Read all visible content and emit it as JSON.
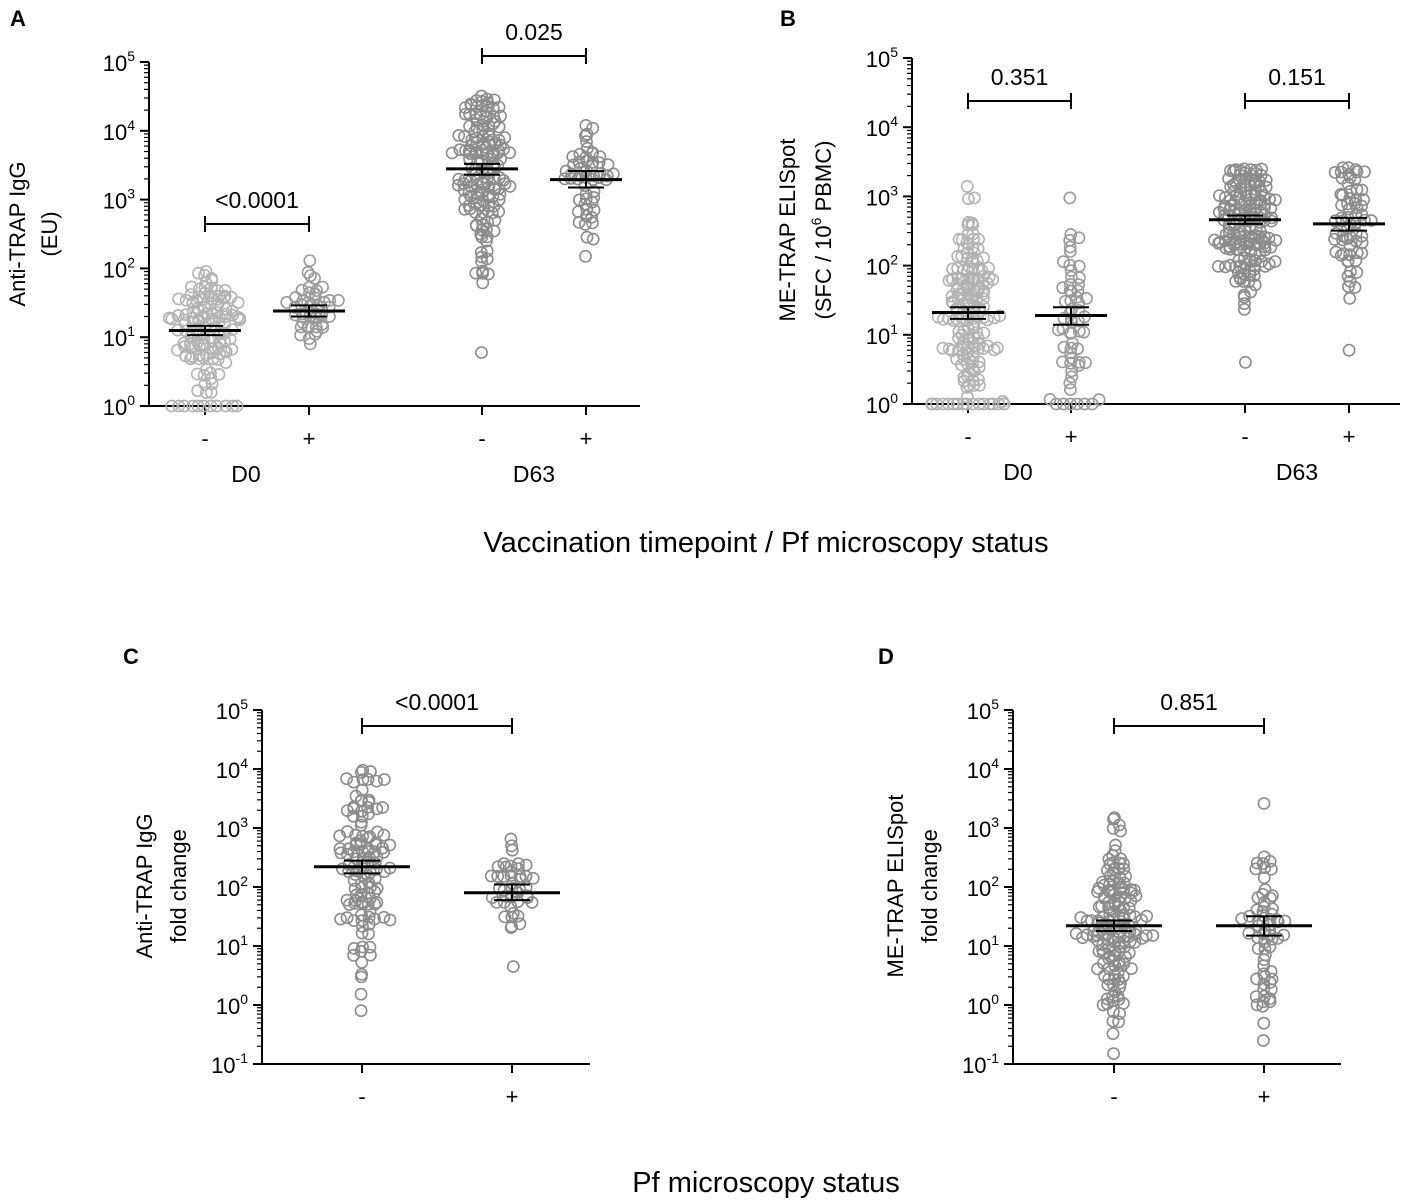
{
  "figure": {
    "shared_xlabel_top": "Vaccination timepoint / Pf microscopy status",
    "shared_xlabel_bottom": "Pf microscopy status"
  },
  "chart_data": [
    {
      "panel": "A",
      "type": "scatter",
      "yscale": "log10",
      "ylim_exponents": [
        0,
        5
      ],
      "ytick_base": "10",
      "ytick_exponents": [
        "0",
        "1",
        "2",
        "3",
        "4",
        "5"
      ],
      "ylabel_lines": [
        "Anti-TRAP IgG",
        "(EU)"
      ],
      "categories": [
        "-",
        "+",
        "-",
        "+"
      ],
      "groups": [
        "D0",
        "D63"
      ],
      "series": [
        {
          "name": "D0 -",
          "gray": "#b3b3b3",
          "geo_mean": 12.5,
          "ci": [
            10.7,
            14.6
          ],
          "n": 130,
          "min": 1,
          "max": 90,
          "floor_count": 10
        },
        {
          "name": "D0 +",
          "gray": "#9a9a9a",
          "geo_mean": 24,
          "ci": [
            20,
            29
          ],
          "n": 45,
          "min": 8,
          "max": 130,
          "floor_count": 0
        },
        {
          "name": "D63 -",
          "gray": "#8c8c8c",
          "geo_mean": 2800,
          "ci": [
            2300,
            3300
          ],
          "n": 150,
          "min": 6,
          "max": 32000,
          "floor_count": 0
        },
        {
          "name": "D63 +",
          "gray": "#8c8c8c",
          "geo_mean": 1950,
          "ci": [
            1500,
            2600
          ],
          "n": 55,
          "min": 150,
          "max": 12000,
          "floor_count": 0
        }
      ],
      "comparisons": [
        {
          "between": [
            "D0 -",
            "D0 +"
          ],
          "p": "<0.0001"
        },
        {
          "between": [
            "D63 -",
            "D63 +"
          ],
          "p": "0.025"
        }
      ]
    },
    {
      "panel": "B",
      "type": "scatter",
      "yscale": "log10",
      "ylim_exponents": [
        0,
        5
      ],
      "ytick_base": "10",
      "ytick_exponents": [
        "0",
        "1",
        "2",
        "3",
        "4",
        "5"
      ],
      "ylabel_lines": [
        "ME-TRAP ELISpot",
        "(SFC / 10",
        "6",
        " PBMC)"
      ],
      "categories": [
        "-",
        "+",
        "-",
        "+"
      ],
      "groups": [
        "D0",
        "D63"
      ],
      "series": [
        {
          "name": "D0 -",
          "gray": "#b3b3b3",
          "geo_mean": 21,
          "ci": [
            17,
            25
          ],
          "n": 170,
          "min": 1,
          "max": 1400,
          "floor_count": 16
        },
        {
          "name": "D0 +",
          "gray": "#9a9a9a",
          "geo_mean": 19,
          "ci": [
            14,
            25
          ],
          "n": 60,
          "min": 1,
          "max": 950,
          "floor_count": 5
        },
        {
          "name": "D63 -",
          "gray": "#8c8c8c",
          "geo_mean": 460,
          "ci": [
            400,
            530
          ],
          "n": 170,
          "min": 4,
          "max": 2500,
          "floor_count": 0
        },
        {
          "name": "D63 +",
          "gray": "#8c8c8c",
          "geo_mean": 400,
          "ci": [
            320,
            490
          ],
          "n": 65,
          "min": 6,
          "max": 2600,
          "floor_count": 0
        }
      ],
      "comparisons": [
        {
          "between": [
            "D0 -",
            "D0 +"
          ],
          "p": "0.351"
        },
        {
          "between": [
            "D63 -",
            "D63 +"
          ],
          "p": "0.151"
        }
      ]
    },
    {
      "panel": "C",
      "type": "scatter",
      "yscale": "log10",
      "ylim_exponents": [
        -1,
        5
      ],
      "ytick_base": "10",
      "ytick_exponents": [
        "-1",
        "0",
        "1",
        "2",
        "3",
        "4",
        "5"
      ],
      "ylabel_lines": [
        "Anti-TRAP IgG",
        "fold change"
      ],
      "categories": [
        "-",
        "+"
      ],
      "groups": [],
      "series": [
        {
          "name": "-",
          "gray": "#8c8c8c",
          "geo_mean": 220,
          "ci": [
            170,
            280
          ],
          "n": 120,
          "min": 0.8,
          "max": 9500,
          "floor_count": 0
        },
        {
          "name": "+",
          "gray": "#8c8c8c",
          "geo_mean": 80,
          "ci": [
            60,
            110
          ],
          "n": 45,
          "min": 4.5,
          "max": 650,
          "floor_count": 0
        }
      ],
      "comparisons": [
        {
          "between": [
            "-",
            "+"
          ],
          "p": "<0.0001"
        }
      ]
    },
    {
      "panel": "D",
      "type": "scatter",
      "yscale": "log10",
      "ylim_exponents": [
        -1,
        5
      ],
      "ytick_base": "10",
      "ytick_exponents": [
        "-1",
        "0",
        "1",
        "2",
        "3",
        "4",
        "5"
      ],
      "ylabel_lines": [
        "ME-TRAP ELISpot",
        "fold change"
      ],
      "categories": [
        "-",
        "+"
      ],
      "groups": [],
      "series": [
        {
          "name": "-",
          "gray": "#8c8c8c",
          "geo_mean": 22,
          "ci": [
            18,
            27
          ],
          "n": 160,
          "min": 0.15,
          "max": 1500,
          "floor_count": 0
        },
        {
          "name": "+",
          "gray": "#8c8c8c",
          "geo_mean": 22,
          "ci": [
            15,
            32
          ],
          "n": 65,
          "min": 0.25,
          "max": 2600,
          "floor_count": 0
        }
      ],
      "comparisons": [
        {
          "between": [
            "-",
            "+"
          ],
          "p": "0.851"
        }
      ]
    }
  ]
}
